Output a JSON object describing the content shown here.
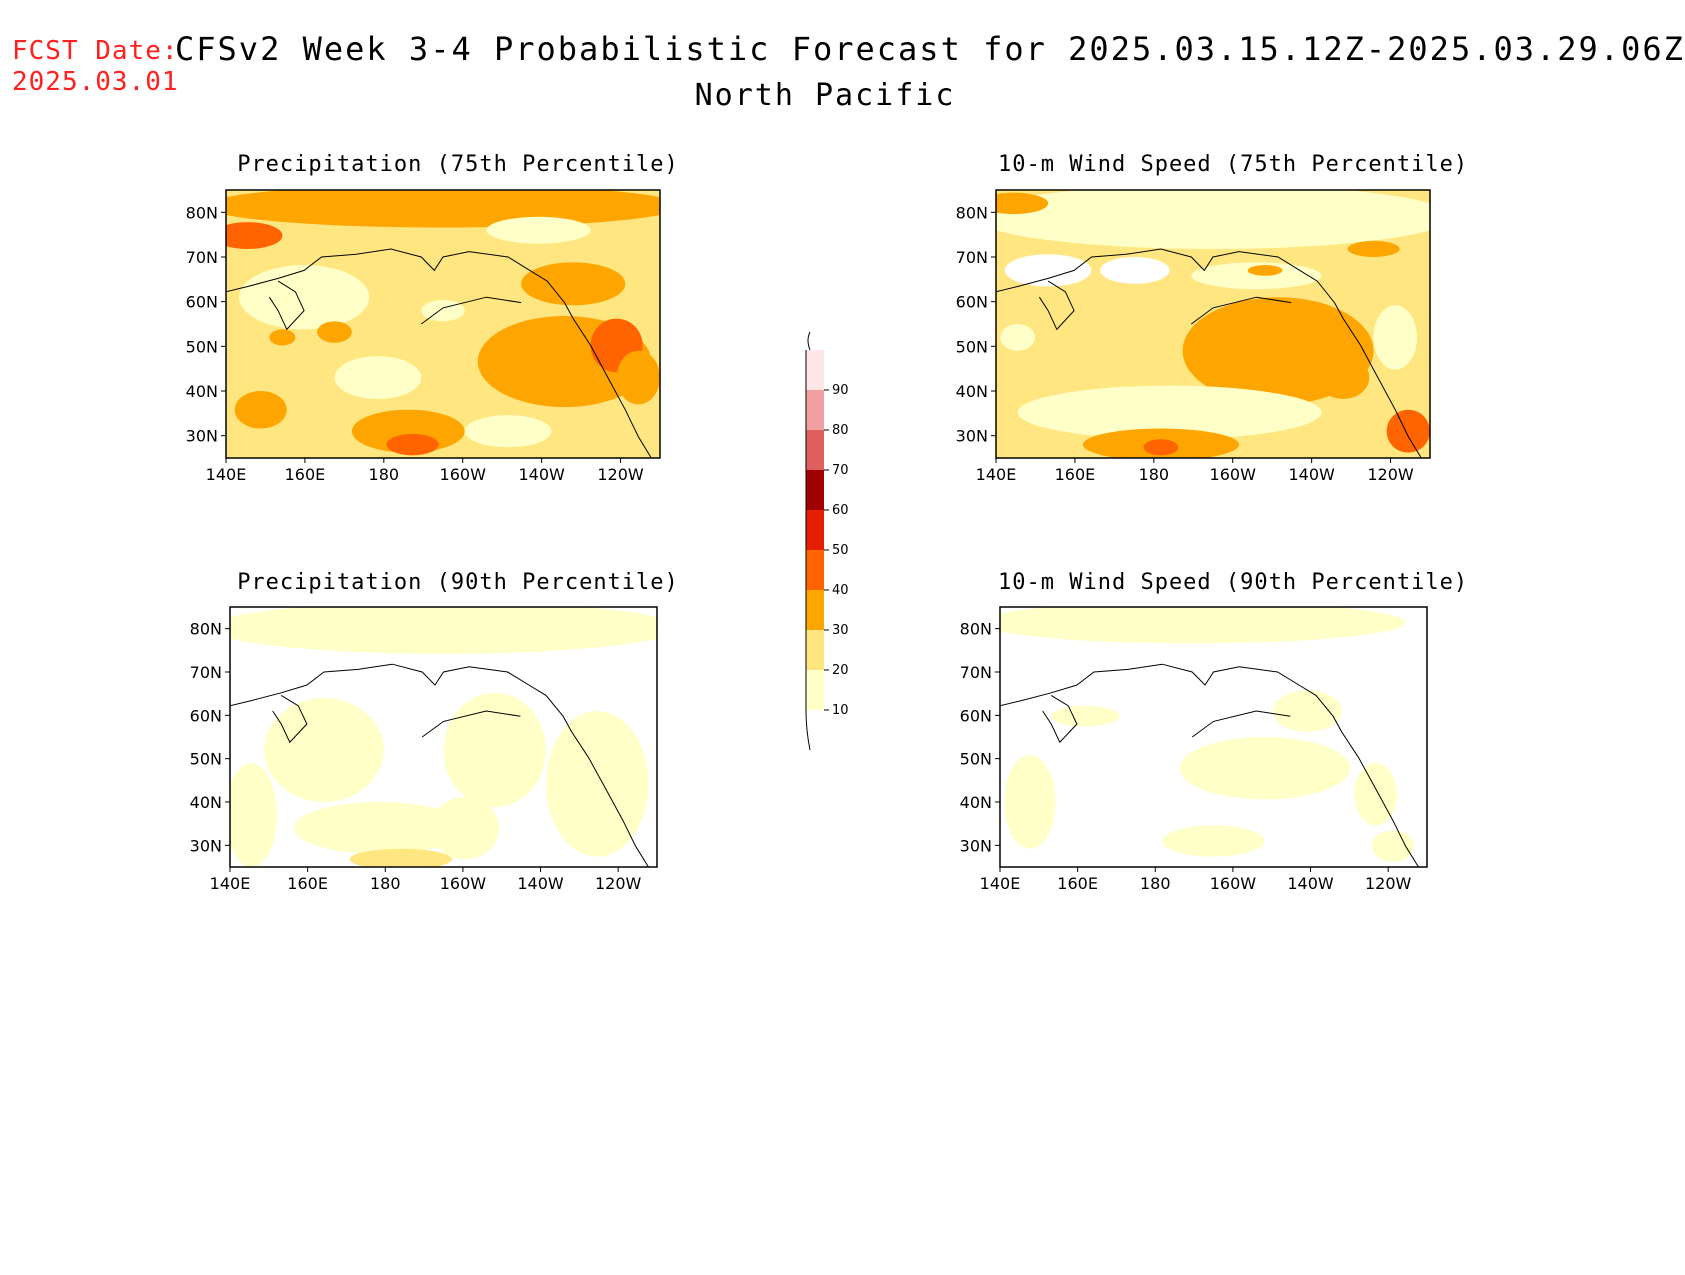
{
  "header": {
    "fcst_label": "FCST Date:",
    "fcst_date": "2025.03.01",
    "title": "CFSv2 Week 3-4 Probabilistic Forecast for 2025.03.15.12Z-2025.03.29.06Z",
    "region": "North Pacific"
  },
  "panels": [
    {
      "id": "precip75",
      "title": "Precipitation (75th Percentile)"
    },
    {
      "id": "wind75",
      "title": "10-m Wind Speed (75th Percentile)"
    },
    {
      "id": "precip90",
      "title": "Precipitation (90th Percentile)"
    },
    {
      "id": "wind90",
      "title": "10-m Wind Speed (90th Percentile)"
    }
  ],
  "axes": {
    "lon_labels": [
      "140E",
      "160E",
      "180",
      "160W",
      "140W",
      "120W"
    ],
    "lat_labels": [
      "80N",
      "70N",
      "60N",
      "50N",
      "40N",
      "30N"
    ]
  },
  "colorbar": {
    "levels": [
      "10",
      "20",
      "30",
      "40",
      "50",
      "60",
      "70",
      "80",
      "90"
    ],
    "colors": [
      "#ffffc8",
      "#ffe680",
      "#ffa500",
      "#ff6400",
      "#e61e00",
      "#a00000",
      "#e06060",
      "#f0a0a0",
      "#ffe6e6"
    ]
  }
}
